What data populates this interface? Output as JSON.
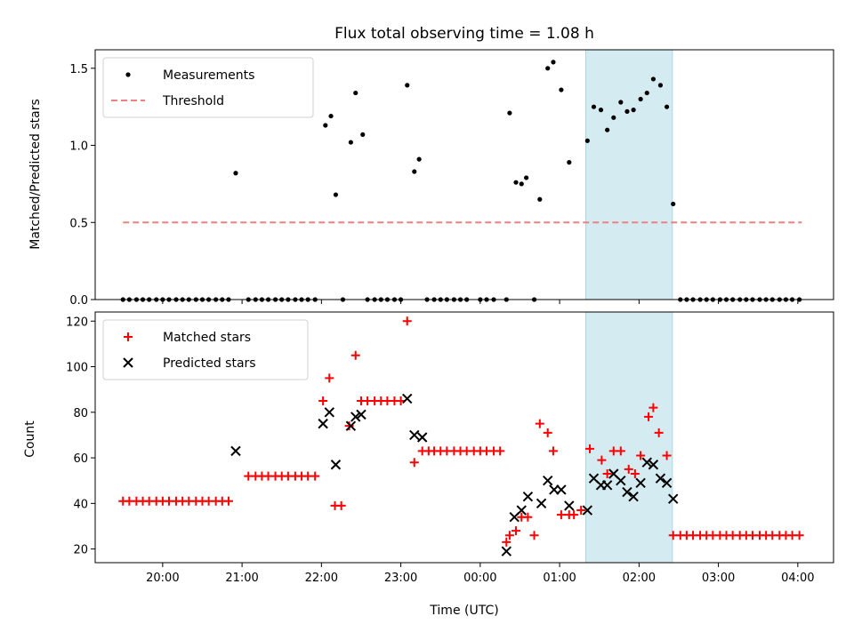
{
  "chart_data": [
    {
      "type": "scatter",
      "title": "Flux total observing time = 1.08 h",
      "xlabel": "",
      "ylabel": "Matched/Predicted stars",
      "xlim": [
        19.15,
        28.45
      ],
      "ylim": [
        0,
        1.62
      ],
      "yticks": [
        0.0,
        0.5,
        1.0,
        1.5
      ],
      "ytick_labels": [
        "0.0",
        "0.5",
        "1.0",
        "1.5"
      ],
      "highlight_span": [
        25.33,
        26.42
      ],
      "highlight_color": "#d4ebf1",
      "legend": {
        "location": "upper-left",
        "entries": [
          "Measurements",
          "Threshold"
        ]
      },
      "series": [
        {
          "name": "Measurements",
          "marker": "dot",
          "color": "#000000",
          "x": [
            19.5,
            19.58,
            19.67,
            19.75,
            19.83,
            19.92,
            20.0,
            20.08,
            20.17,
            20.25,
            20.33,
            20.42,
            20.5,
            20.58,
            20.67,
            20.75,
            20.83,
            20.92,
            21.08,
            21.17,
            21.25,
            21.33,
            21.42,
            21.5,
            21.58,
            21.67,
            21.75,
            21.83,
            21.92,
            22.05,
            22.12,
            22.18,
            22.27,
            22.37,
            22.43,
            22.52,
            22.58,
            22.67,
            22.75,
            22.83,
            22.92,
            23.0,
            23.08,
            23.17,
            23.23,
            23.33,
            23.42,
            23.5,
            23.58,
            23.67,
            23.75,
            23.83,
            24.0,
            24.08,
            24.17,
            24.33,
            24.37,
            24.45,
            24.52,
            24.58,
            24.68,
            24.75,
            24.85,
            24.92,
            25.02,
            25.12,
            25.35,
            25.43,
            25.52,
            25.6,
            25.68,
            25.77,
            25.85,
            25.93,
            26.02,
            26.1,
            26.18,
            26.27,
            26.35,
            26.43,
            26.52,
            26.6,
            26.68,
            26.77,
            26.85,
            26.93,
            27.02,
            27.1,
            27.18,
            27.27,
            27.35,
            27.43,
            27.52,
            27.6,
            27.68,
            27.77,
            27.85,
            27.93,
            28.02
          ],
          "y": [
            0,
            0,
            0,
            0,
            0,
            0,
            0,
            0,
            0,
            0,
            0,
            0,
            0,
            0,
            0,
            0,
            0,
            0.82,
            0,
            0,
            0,
            0,
            0,
            0,
            0,
            0,
            0,
            0,
            0,
            1.13,
            1.19,
            0.68,
            0,
            1.02,
            1.34,
            1.07,
            0,
            0,
            0,
            0,
            0,
            0,
            1.39,
            0.83,
            0.91,
            0,
            0,
            0,
            0,
            0,
            0,
            0,
            0,
            0,
            0,
            0,
            1.21,
            0.76,
            0.75,
            0.79,
            0,
            0.65,
            1.5,
            1.54,
            1.36,
            0.89,
            1.03,
            1.25,
            1.23,
            1.1,
            1.18,
            1.28,
            1.22,
            1.23,
            1.3,
            1.34,
            1.43,
            1.39,
            1.25,
            0.62,
            0,
            0,
            0,
            0,
            0,
            0,
            0,
            0,
            0,
            0,
            0,
            0,
            0,
            0,
            0,
            0,
            0,
            0,
            0
          ]
        },
        {
          "name": "Threshold",
          "marker": "dashed-line",
          "color": "#f08080",
          "x": [
            19.5,
            28.05
          ],
          "y": [
            0.5,
            0.5
          ]
        }
      ]
    },
    {
      "type": "scatter",
      "title": "",
      "xlabel": "Time (UTC)",
      "ylabel": "Count",
      "xlim": [
        19.15,
        28.45
      ],
      "ylim": [
        14,
        124
      ],
      "yticks": [
        20,
        40,
        60,
        80,
        100,
        120
      ],
      "ytick_labels": [
        "20",
        "40",
        "60",
        "80",
        "100",
        "120"
      ],
      "xticks": [
        20,
        21,
        22,
        23,
        24,
        25,
        26,
        27,
        28
      ],
      "xtick_labels": [
        "20:00",
        "21:00",
        "22:00",
        "23:00",
        "00:00",
        "01:00",
        "02:00",
        "03:00",
        "04:00"
      ],
      "highlight_span": [
        25.33,
        26.42
      ],
      "highlight_color": "#d4ebf1",
      "legend": {
        "location": "upper-left",
        "entries": [
          "Matched stars",
          "Predicted stars"
        ]
      },
      "series": [
        {
          "name": "Matched stars",
          "marker": "plus",
          "color": "#ff0000",
          "x": [
            19.5,
            19.58,
            19.67,
            19.75,
            19.83,
            19.92,
            20.0,
            20.08,
            20.17,
            20.25,
            20.33,
            20.42,
            20.5,
            20.58,
            20.67,
            20.75,
            20.83,
            21.08,
            21.17,
            21.25,
            21.33,
            21.42,
            21.5,
            21.58,
            21.67,
            21.75,
            21.83,
            21.92,
            22.02,
            22.1,
            22.17,
            22.25,
            22.35,
            22.43,
            22.5,
            22.58,
            22.67,
            22.75,
            22.83,
            22.92,
            23.0,
            23.08,
            23.17,
            23.27,
            23.35,
            23.42,
            23.5,
            23.58,
            23.67,
            23.75,
            23.83,
            23.92,
            24.0,
            24.08,
            24.17,
            24.25,
            24.33,
            24.37,
            24.45,
            24.52,
            24.6,
            24.68,
            24.75,
            24.85,
            24.92,
            25.02,
            25.12,
            25.18,
            25.27,
            25.38,
            25.53,
            25.6,
            25.68,
            25.77,
            25.87,
            25.95,
            26.02,
            26.12,
            26.18,
            26.25,
            26.35,
            26.43,
            26.52,
            26.6,
            26.68,
            26.77,
            26.85,
            26.93,
            27.02,
            27.1,
            27.18,
            27.27,
            27.35,
            27.43,
            27.52,
            27.6,
            27.68,
            27.77,
            27.85,
            27.93,
            28.02
          ],
          "y": [
            41,
            41,
            41,
            41,
            41,
            41,
            41,
            41,
            41,
            41,
            41,
            41,
            41,
            41,
            41,
            41,
            41,
            52,
            52,
            52,
            52,
            52,
            52,
            52,
            52,
            52,
            52,
            52,
            85,
            95,
            39,
            39,
            74,
            105,
            85,
            85,
            85,
            85,
            85,
            85,
            85,
            120,
            58,
            63,
            63,
            63,
            63,
            63,
            63,
            63,
            63,
            63,
            63,
            63,
            63,
            63,
            23,
            26,
            28,
            34,
            34,
            26,
            75,
            71,
            63,
            35,
            35,
            35,
            37,
            64,
            59,
            53,
            63,
            63,
            55,
            53,
            61,
            78,
            82,
            71,
            61,
            26,
            26,
            26,
            26,
            26,
            26,
            26,
            26,
            26,
            26,
            26,
            26,
            26,
            26,
            26,
            26,
            26,
            26,
            26,
            26
          ]
        },
        {
          "name": "Predicted stars",
          "marker": "x",
          "color": "#000000",
          "x": [
            20.92,
            22.02,
            22.1,
            22.18,
            22.37,
            22.43,
            22.5,
            23.08,
            23.17,
            23.27,
            24.33,
            24.43,
            24.52,
            24.6,
            24.77,
            24.85,
            24.93,
            25.02,
            25.12,
            25.35,
            25.43,
            25.52,
            25.6,
            25.68,
            25.77,
            25.85,
            25.93,
            26.02,
            26.1,
            26.18,
            26.27,
            26.35,
            26.43
          ],
          "y": [
            63,
            75,
            80,
            57,
            74,
            78,
            79,
            86,
            70,
            69,
            19,
            34,
            37,
            43,
            40,
            50,
            46,
            46,
            39,
            37,
            51,
            48,
            48,
            53,
            50,
            45,
            43,
            49,
            58,
            57,
            51,
            49,
            42
          ]
        }
      ]
    }
  ]
}
